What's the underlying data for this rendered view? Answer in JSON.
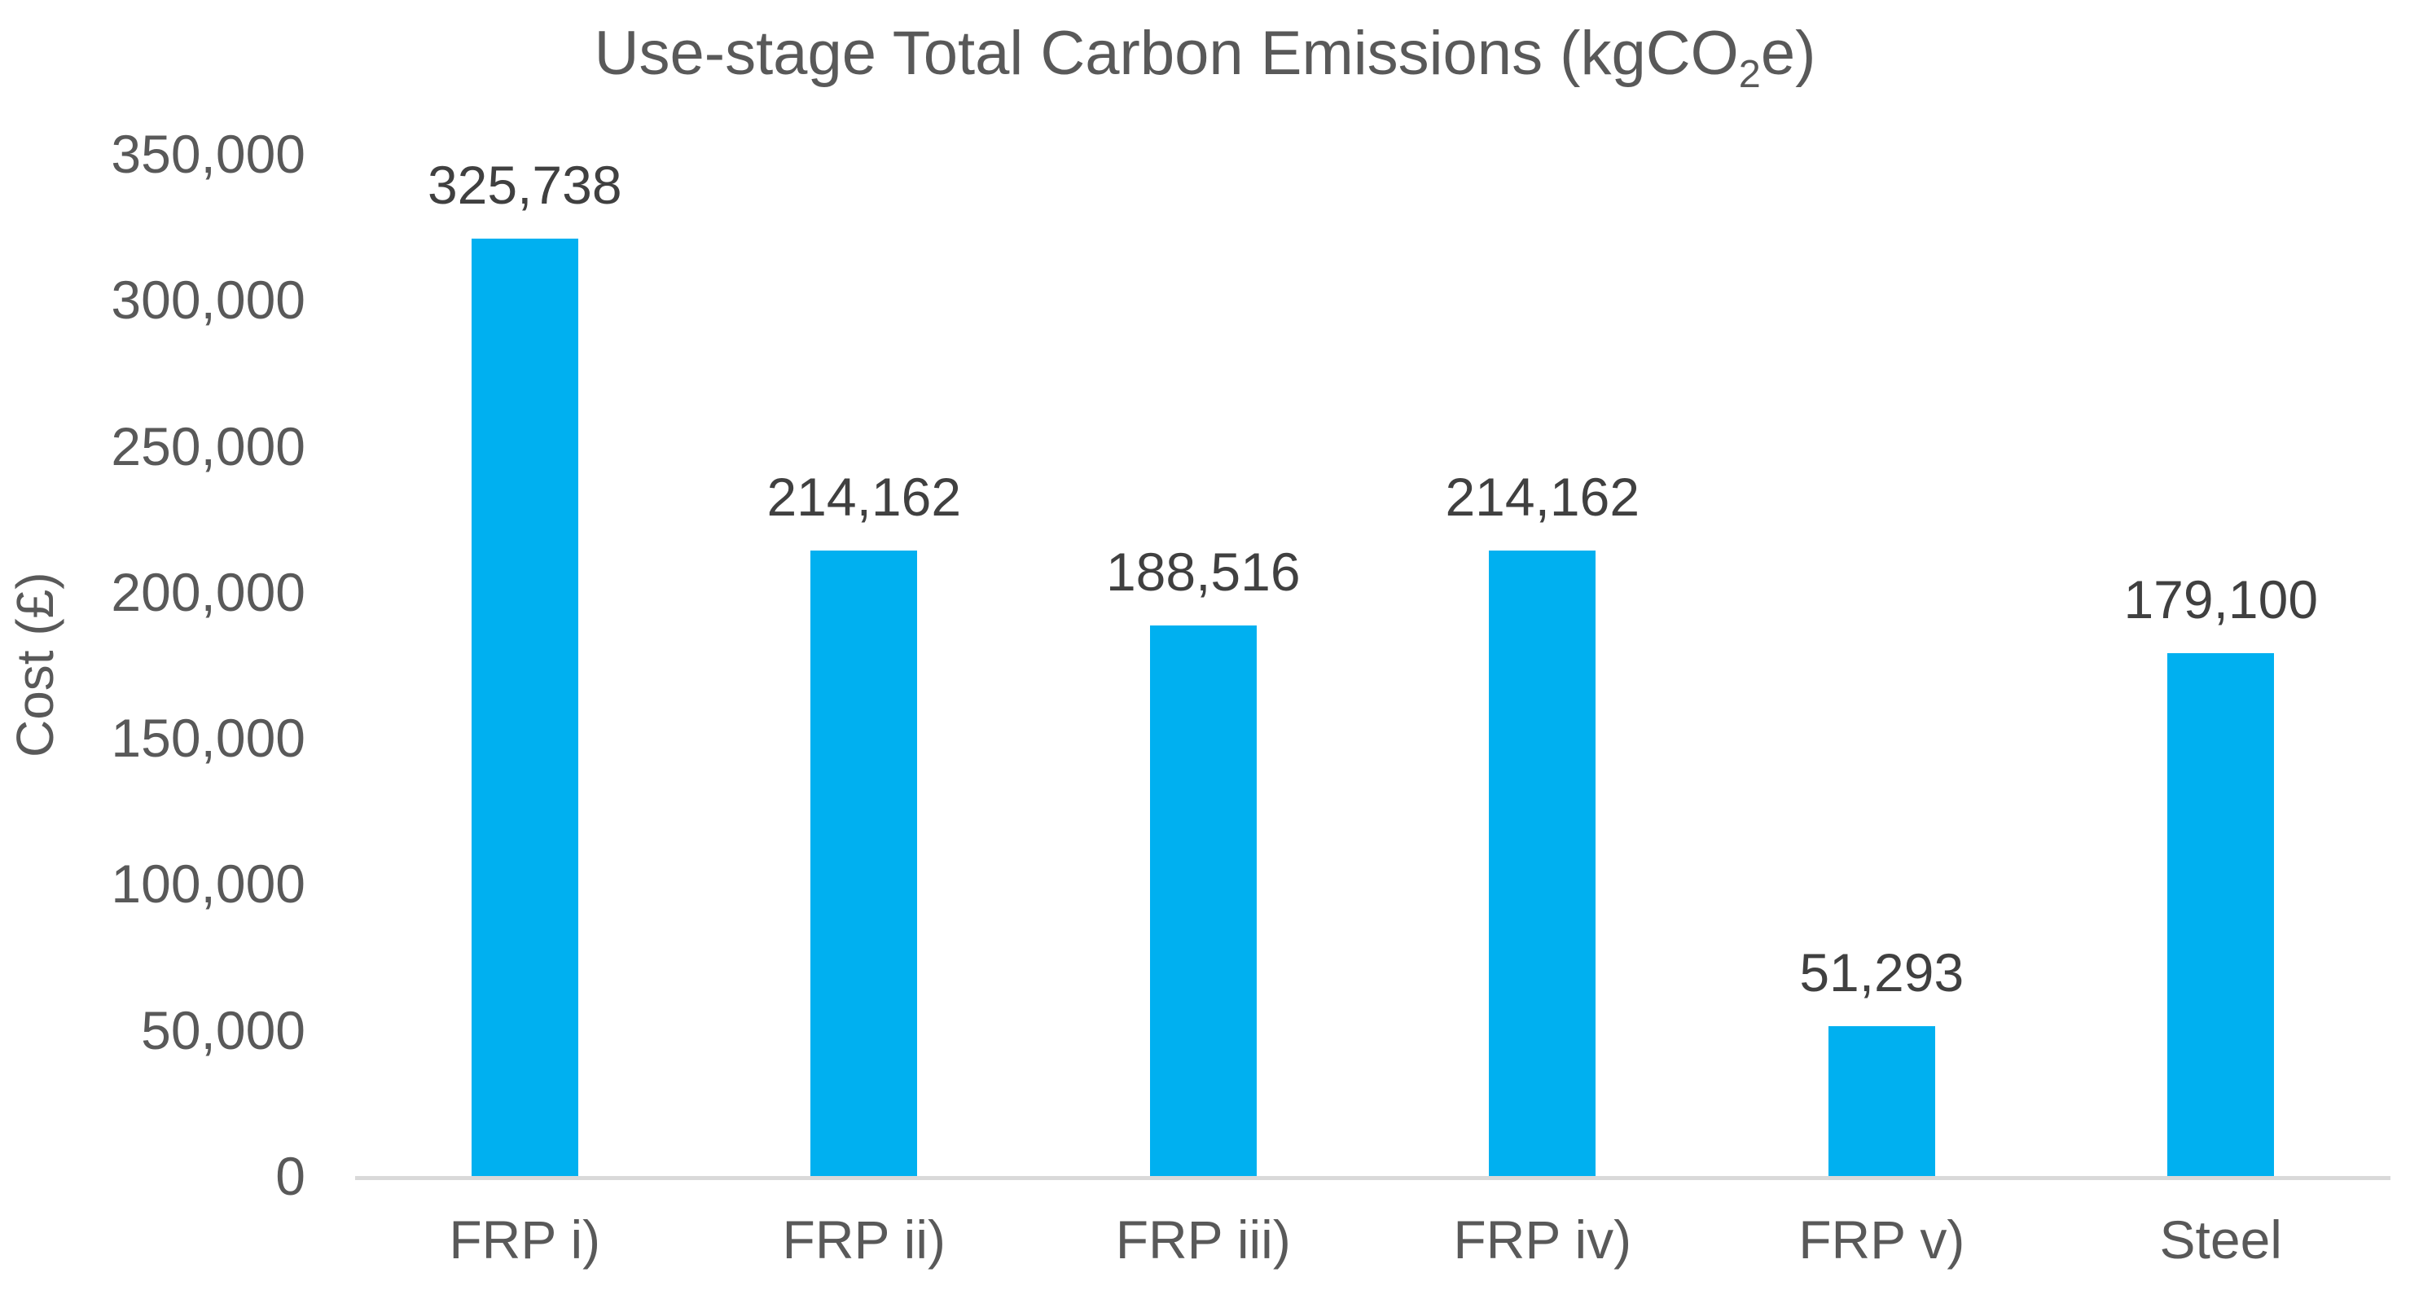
{
  "title": {
    "pre": "Use-stage Total Carbon Emissions (kgCO",
    "sub": "2",
    "post": "e)",
    "full": "Use-stage Total Carbon Emissions (kgCO2e)"
  },
  "y_axis": {
    "title": "Cost (£)"
  },
  "colors": {
    "bar": "#00B0F0",
    "axis_line": "#D9D9D9",
    "title_text": "#595959",
    "axis_text": "#595959",
    "data_label_text": "#404040",
    "background": "#FFFFFF"
  },
  "chart_data": {
    "type": "bar",
    "title": "Use-stage Total Carbon Emissions (kgCO2e)",
    "xlabel": "",
    "ylabel": "Cost (£)",
    "categories": [
      "FRP i)",
      "FRP ii)",
      "FRP iii)",
      "FRP iv)",
      "FRP v)",
      "Steel"
    ],
    "values": [
      325738,
      214162,
      188516,
      214162,
      51293,
      179100
    ],
    "value_labels": [
      "325,738",
      "214,162",
      "188,516",
      "214,162",
      "51,293",
      "179,100"
    ],
    "ylim": [
      0,
      350000
    ],
    "y_axis": {
      "min": 0,
      "max": 350000,
      "step": 50000
    },
    "y_tick_labels": [
      "350,000",
      "300,000",
      "250,000",
      "200,000",
      "150,000",
      "100,000",
      "50,000",
      "0"
    ],
    "grid": false,
    "legend": false,
    "bar_color": "#00B0F0"
  }
}
